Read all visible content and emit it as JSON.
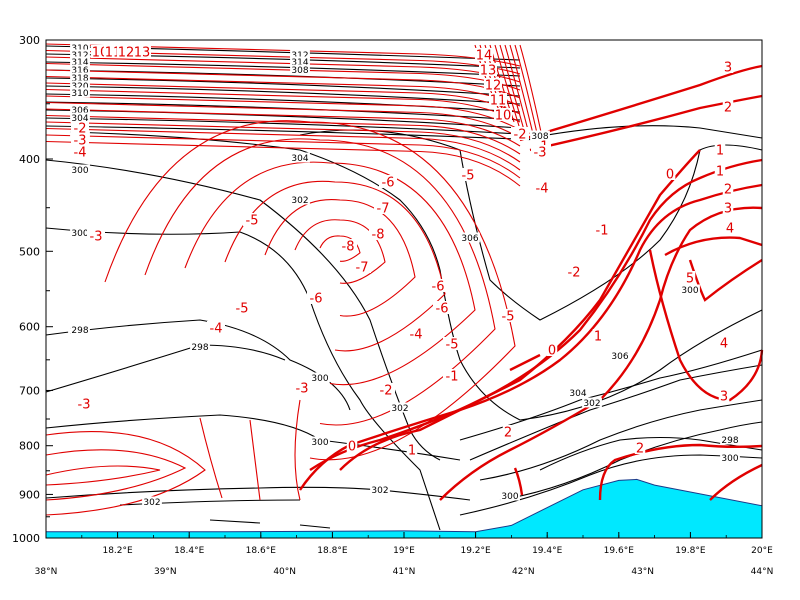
{
  "chart_data": {
    "type": "contour",
    "colors": {
      "theta": "#000000",
      "wind": "#e00000",
      "terrain": "#00e8ff"
    },
    "y_axis": {
      "scale": "log",
      "range": [
        1000,
        300
      ],
      "ticks": [
        "300",
        "400",
        "500",
        "600",
        "700",
        "800",
        "900",
        "1000"
      ],
      "tick_values": [
        300,
        400,
        500,
        600,
        700,
        800,
        900,
        1000
      ]
    },
    "x_axis_top_row": {
      "ticks": [
        "18.2°E",
        "18.4°E",
        "18.6°E",
        "18.8°E",
        "19°E",
        "19.2°E",
        "19.4°E",
        "19.6°E",
        "19.8°E",
        "20°E"
      ],
      "tick_values": [
        18.2,
        18.4,
        18.6,
        18.8,
        19.0,
        19.2,
        19.4,
        19.6,
        19.8,
        20.0
      ],
      "range": [
        18.0,
        20.0
      ]
    },
    "x_axis_bottom_row": {
      "ticks": [
        "38°N",
        "39°N",
        "40°N",
        "41°N",
        "42°N",
        "43°N",
        "44°N"
      ],
      "tick_values": [
        38,
        39,
        40,
        41,
        42,
        43,
        44
      ],
      "range": [
        38,
        44
      ]
    },
    "theta_labels": [
      "300",
      "302",
      "304",
      "306",
      "308",
      "298",
      "298",
      "300",
      "302",
      "304",
      "306",
      "300",
      "302",
      "300",
      "298",
      "300",
      "302",
      "302",
      "300",
      "310",
      "312",
      "314",
      "316",
      "318",
      "320",
      "310",
      "312",
      "314",
      "308",
      "306",
      "304",
      "302",
      "300",
      "298"
    ],
    "wind_labels": [
      "-2",
      "-3",
      "-4",
      "-5",
      "-6",
      "-7",
      "-8",
      "-5",
      "-6",
      "-4",
      "-5",
      "-6",
      "-7",
      "-8",
      "-3",
      "-4",
      "-5",
      "-6",
      "-1",
      "-2",
      "-3",
      "-3",
      "-2",
      "-1",
      "0",
      "1",
      "-1",
      "0",
      "1",
      "2",
      "3",
      "4",
      "5",
      "4",
      "3",
      "2",
      "2",
      "1",
      "0",
      "-1",
      "-2",
      "-3",
      "-4",
      "-5",
      "3",
      "2",
      "1",
      "0",
      "10",
      "11",
      "12",
      "13",
      "14",
      "13",
      "12",
      "11",
      "10"
    ],
    "terrain_profile": {
      "x_deg_lon": [
        18.0,
        18.5,
        19.0,
        19.2,
        19.3,
        19.5,
        19.6,
        19.65,
        19.7,
        20.0
      ],
      "p_hpa": [
        985,
        985,
        983,
        985,
        970,
        890,
        870,
        868,
        880,
        925
      ]
    }
  }
}
